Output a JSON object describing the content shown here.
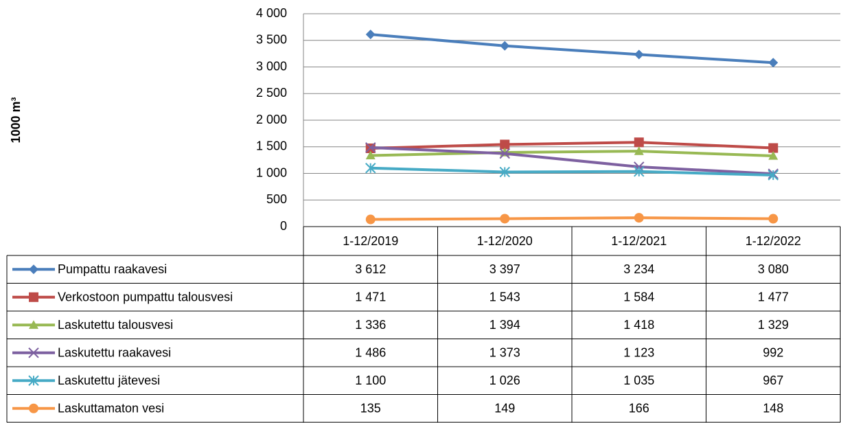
{
  "chart_data": {
    "type": "line",
    "y_label": "1000 m³",
    "categories": [
      "1-12/2019",
      "1-12/2020",
      "1-12/2021",
      "1-12/2022"
    ],
    "ylim": [
      0,
      4000
    ],
    "yticks": [
      {
        "value": 0,
        "label": "0"
      },
      {
        "value": 500,
        "label": "500"
      },
      {
        "value": 1000,
        "label": "1 000"
      },
      {
        "value": 1500,
        "label": "1 500"
      },
      {
        "value": 2000,
        "label": "2 000"
      },
      {
        "value": 2500,
        "label": "2 500"
      },
      {
        "value": 3000,
        "label": "3 000"
      },
      {
        "value": 3500,
        "label": "3 500"
      },
      {
        "value": 4000,
        "label": "4 000"
      }
    ],
    "grid": true,
    "series": [
      {
        "name": "Pumpattu raakavesi",
        "color": "#4a7ebb",
        "marker": "diamond",
        "values": [
          3612,
          3397,
          3234,
          3080
        ],
        "value_labels": [
          "3 612",
          "3 397",
          "3 234",
          "3 080"
        ]
      },
      {
        "name": "Verkostoon pumpattu talousvesi",
        "color": "#be4b48",
        "marker": "square",
        "values": [
          1471,
          1543,
          1584,
          1477
        ],
        "value_labels": [
          "1 471",
          "1 543",
          "1 584",
          "1 477"
        ]
      },
      {
        "name": "Laskutettu talousvesi",
        "color": "#98b954",
        "marker": "triangle",
        "values": [
          1336,
          1394,
          1418,
          1329
        ],
        "value_labels": [
          "1 336",
          "1 394",
          "1 418",
          "1 329"
        ]
      },
      {
        "name": "Laskutettu raakavesi",
        "color": "#7d60a0",
        "marker": "x",
        "values": [
          1486,
          1373,
          1123,
          992
        ],
        "value_labels": [
          "1 486",
          "1 373",
          "1 123",
          "992"
        ]
      },
      {
        "name": "Laskutettu jätevesi",
        "color": "#46aac5",
        "marker": "star",
        "values": [
          1100,
          1026,
          1035,
          967
        ],
        "value_labels": [
          "1 100",
          "1 026",
          "1 035",
          "967"
        ]
      },
      {
        "name": "Laskuttamaton vesi",
        "color": "#f79646",
        "marker": "circle",
        "values": [
          135,
          149,
          166,
          148
        ],
        "value_labels": [
          "135",
          "149",
          "166",
          "148"
        ]
      }
    ]
  }
}
